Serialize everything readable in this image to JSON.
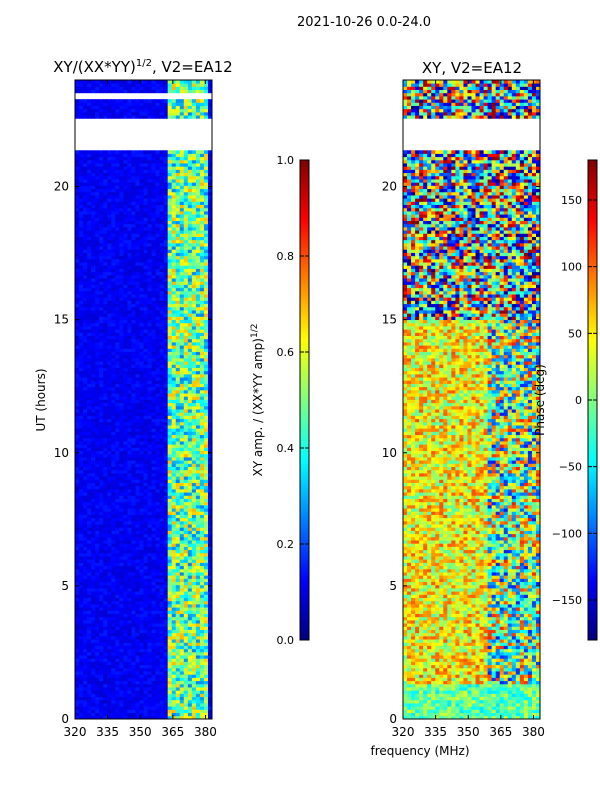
{
  "figure": {
    "suptitle": "2021-10-26 0.0-24.0"
  },
  "chart_data": [
    {
      "type": "heatmap",
      "title": "XY/(XX*YY)^1/2, V2=EA12",
      "title_main": "XY/(XX*YY)",
      "title_exp": "1/2",
      "title_tail": ", V2=EA12",
      "xlabel": "",
      "ylabel": "UT (hours)",
      "xlim": [
        320,
        383
      ],
      "ylim": [
        0,
        24
      ],
      "xticks": [
        320,
        335,
        350,
        365,
        380
      ],
      "yticks": [
        0,
        5,
        10,
        15,
        20
      ],
      "gaps_hours": [
        [
          21.35,
          22.6
        ],
        [
          23.3,
          23.5
        ]
      ],
      "colorbar": {
        "label": "XY amp. / (XX*YY amp)^1/2",
        "label_main": "XY amp. / (XX*YY amp)",
        "label_exp": "1/2",
        "range": [
          0.0,
          1.0
        ],
        "ticks": [
          "0.0",
          "0.2",
          "0.4",
          "0.6",
          "0.8",
          "1.0"
        ],
        "tick_values": [
          0.0,
          0.2,
          0.4,
          0.6,
          0.8,
          1.0
        ]
      }
    },
    {
      "type": "heatmap",
      "title": "XY, V2=EA12",
      "xlabel": "",
      "ylabel": "",
      "xlim": [
        320,
        383
      ],
      "ylim": [
        0,
        24
      ],
      "xticks": [
        320,
        335,
        350,
        365,
        380
      ],
      "yticks": [
        0,
        5,
        10,
        15,
        20
      ],
      "gaps_hours": [
        [
          21.35,
          22.6
        ]
      ],
      "colorbar": {
        "label": "Phase (deg)",
        "range": [
          -180,
          180
        ],
        "ticks": [
          "150",
          "100",
          "50",
          "0",
          "−50",
          "−100",
          "−150"
        ],
        "tick_values": [
          150,
          100,
          50,
          0,
          -50,
          -100,
          -150
        ]
      }
    }
  ],
  "shared_xlabel": "frequency (MHz)"
}
